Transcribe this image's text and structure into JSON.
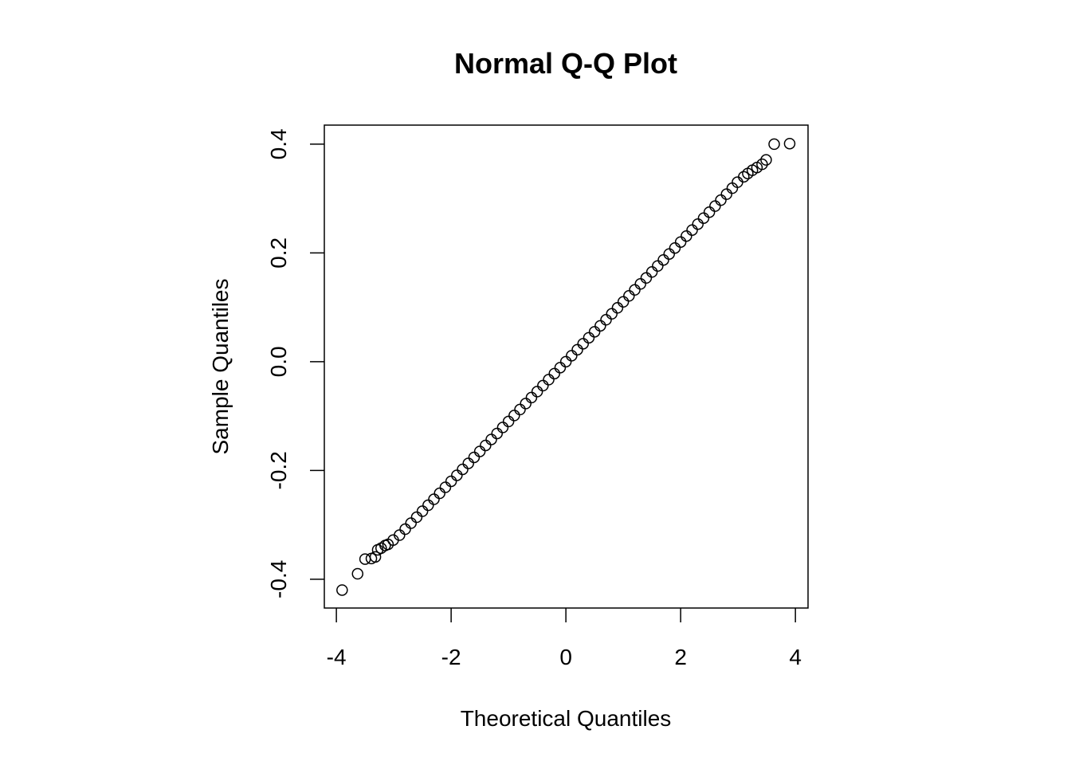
{
  "chart_data": {
    "type": "scatter",
    "title": "Normal Q-Q Plot",
    "x_label": "Theoretical Quantiles",
    "y_label": "Sample Quantiles",
    "x": [
      -3.9,
      -3.63,
      -3.5,
      -3.39,
      -3.32,
      -3.28,
      -3.22,
      -3.15,
      -3.1,
      -3.01,
      -2.9,
      -2.8,
      -2.7,
      -2.6,
      -2.5,
      -2.4,
      -2.3,
      -2.2,
      -2.1,
      -2.0,
      -1.9,
      -1.8,
      -1.7,
      -1.6,
      -1.5,
      -1.4,
      -1.3,
      -1.2,
      -1.1,
      -1.0,
      -0.9,
      -0.8,
      -0.7,
      -0.6,
      -0.5,
      -0.4,
      -0.3,
      -0.2,
      -0.1,
      0,
      0.1,
      0.2,
      0.3,
      0.4,
      0.5,
      0.6,
      0.7,
      0.8,
      0.9,
      1.0,
      1.1,
      1.2,
      1.3,
      1.4,
      1.5,
      1.6,
      1.7,
      1.8,
      1.9,
      2.0,
      2.1,
      2.2,
      2.3,
      2.4,
      2.5,
      2.6,
      2.7,
      2.8,
      2.9,
      2.99,
      3.1,
      3.17,
      3.25,
      3.33,
      3.42,
      3.49,
      3.63,
      3.9
    ],
    "values": [
      -0.42,
      -0.39,
      -0.363,
      -0.362,
      -0.359,
      -0.346,
      -0.343,
      -0.338,
      -0.336,
      -0.328,
      -0.319,
      -0.308,
      -0.297,
      -0.286,
      -0.275,
      -0.264,
      -0.253,
      -0.242,
      -0.231,
      -0.22,
      -0.209,
      -0.198,
      -0.187,
      -0.176,
      -0.165,
      -0.154,
      -0.143,
      -0.132,
      -0.121,
      -0.11,
      -0.099,
      -0.088,
      -0.077,
      -0.066,
      -0.055,
      -0.044,
      -0.033,
      -0.022,
      -0.011,
      0,
      0.011,
      0.022,
      0.033,
      0.044,
      0.055,
      0.066,
      0.077,
      0.088,
      0.099,
      0.11,
      0.121,
      0.132,
      0.143,
      0.154,
      0.165,
      0.176,
      0.187,
      0.198,
      0.209,
      0.22,
      0.231,
      0.242,
      0.253,
      0.264,
      0.275,
      0.286,
      0.297,
      0.308,
      0.319,
      0.33,
      0.34,
      0.346,
      0.352,
      0.357,
      0.363,
      0.371,
      0.4,
      0.401
    ],
    "color": "#000000",
    "xlim": [
      -4.21,
      4.22
    ],
    "ylim": [
      -0.453,
      0.435
    ],
    "xticks": [
      -4,
      -2,
      0,
      2,
      4
    ],
    "yticks": [
      -0.4,
      -0.2,
      {
        "value": 0,
        "label": "0.0"
      },
      0.2,
      0.4
    ]
  }
}
